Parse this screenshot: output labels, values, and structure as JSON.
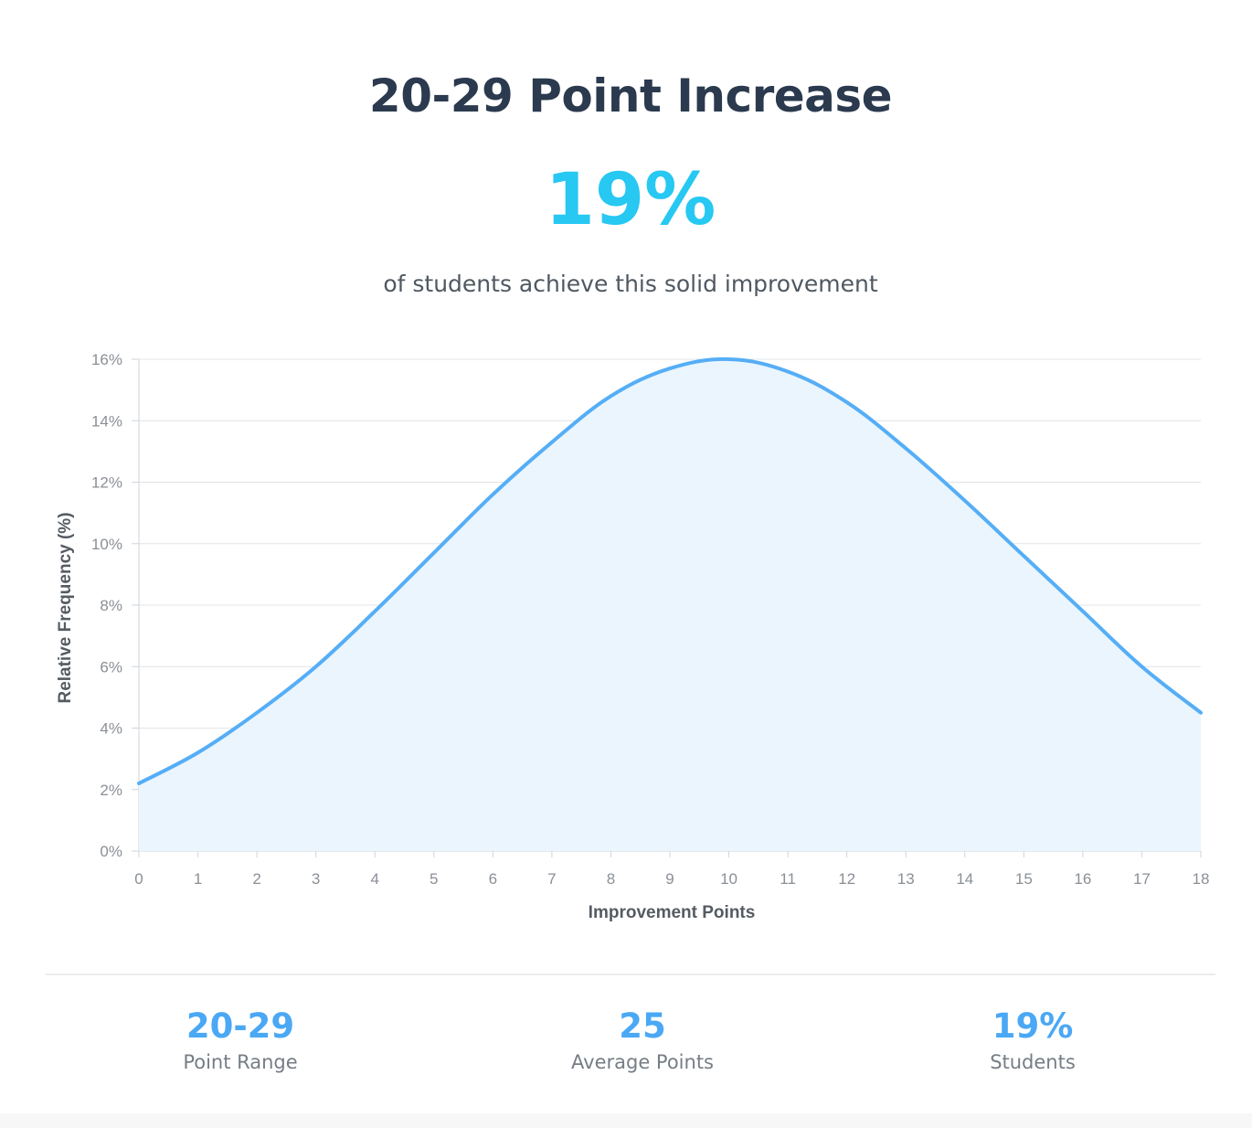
{
  "header": {
    "title": "20-29 Point Increase",
    "percent": "19%",
    "subtitle": "of students achieve this solid improvement"
  },
  "chart_data": {
    "type": "area",
    "xlabel": "Improvement Points",
    "ylabel": "Relative Frequency (%)",
    "x": [
      0,
      1,
      2,
      3,
      4,
      5,
      6,
      7,
      8,
      9,
      10,
      11,
      12,
      13,
      14,
      15,
      16,
      17,
      18
    ],
    "values": [
      2.2,
      3.2,
      4.5,
      6.0,
      7.8,
      9.7,
      11.6,
      13.3,
      14.8,
      15.7,
      16.0,
      15.6,
      14.6,
      13.1,
      11.4,
      9.6,
      7.8,
      6.0,
      4.5
    ],
    "xlim": [
      0,
      18
    ],
    "ylim": [
      0,
      16
    ],
    "y_ticks": [
      "0%",
      "2%",
      "4%",
      "6%",
      "8%",
      "10%",
      "12%",
      "14%",
      "16%"
    ],
    "x_ticks": [
      "0",
      "1",
      "2",
      "3",
      "4",
      "5",
      "6",
      "7",
      "8",
      "9",
      "10",
      "11",
      "12",
      "13",
      "14",
      "15",
      "16",
      "17",
      "18"
    ],
    "grid": true,
    "colors": {
      "line": "#55aef6",
      "fill": "#eaf5fd",
      "grid": "#e1e4e8",
      "axis": "#cfd4da",
      "tick_text": "#8a8f96",
      "label_text": "#555b62"
    }
  },
  "stats": [
    {
      "value": "20-29",
      "label": "Point Range"
    },
    {
      "value": "25",
      "label": "Average Points"
    },
    {
      "value": "19%",
      "label": "Students"
    }
  ]
}
